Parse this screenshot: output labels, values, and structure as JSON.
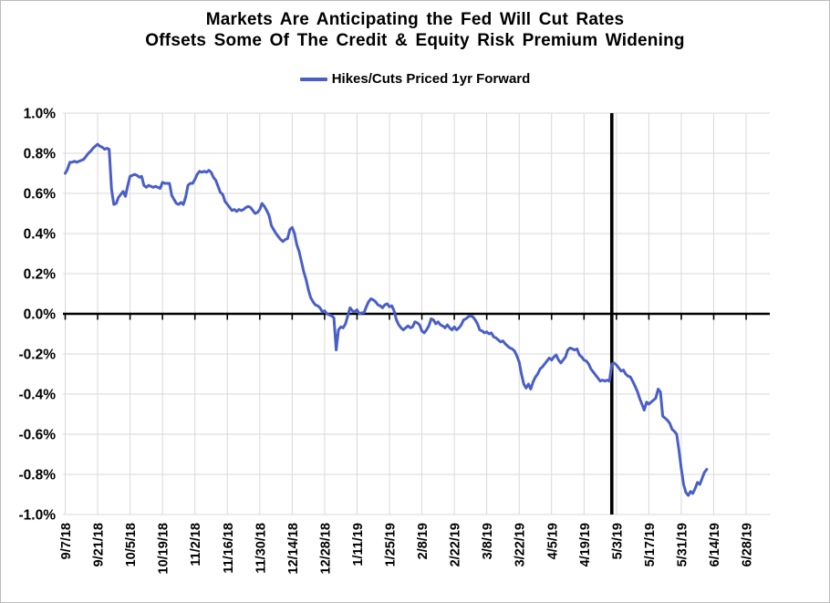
{
  "title": {
    "line1": "Markets Are Anticipating the Fed Will Cut Rates",
    "line2": "Offsets Some Of The Credit & Equity Risk Premium Widening"
  },
  "legend": {
    "label": "Hikes/Cuts Priced 1yr Forward"
  },
  "colors": {
    "series_blue": "#4a5fc6",
    "gridline_gray": "#d9d9d9",
    "axis_black": "#000000",
    "background": "#ffffff"
  },
  "chart_data": {
    "type": "line",
    "title": "Markets Are Anticipating the Fed Will Cut Rates Offsets Some Of The Credit & Equity Risk Premium Widening",
    "xlabel": "",
    "ylabel": "",
    "y_unit": "%",
    "ylim": [
      -1.0,
      1.0
    ],
    "y_tick_labels": [
      "1.0%",
      "0.8%",
      "0.6%",
      "0.4%",
      "0.2%",
      "0.0%",
      "-0.2%",
      "-0.4%",
      "-0.6%",
      "-0.8%",
      "-1.0%"
    ],
    "x_tick_labels": [
      "9/7/18",
      "9/21/18",
      "10/5/18",
      "10/19/18",
      "11/2/18",
      "11/16/18",
      "11/30/18",
      "12/14/18",
      "12/28/18",
      "1/11/19",
      "1/25/19",
      "2/8/19",
      "2/22/19",
      "3/8/19",
      "3/22/19",
      "4/5/19",
      "4/19/19",
      "5/3/19",
      "5/17/19",
      "5/31/19",
      "6/14/19",
      "6/28/19"
    ],
    "x_axis": {
      "start_date": "9/7/18",
      "end_date": "6/28/19",
      "tick_interval_days": 14,
      "total_days": 294
    },
    "grid": true,
    "legend_position": "top",
    "zero_line": true,
    "event_line": {
      "x_day": 236,
      "approx_date": "5/1/19",
      "color": "#000000"
    },
    "series": [
      {
        "name": "Hikes/Cuts Priced 1yr Forward",
        "color": "#4a5fc6",
        "points_format": "[days_since_9/7/18, percent_value]",
        "points": [
          [
            0,
            0.7
          ],
          [
            1,
            0.72
          ],
          [
            2,
            0.755
          ],
          [
            3,
            0.755
          ],
          [
            4,
            0.76
          ],
          [
            5,
            0.755
          ],
          [
            6,
            0.76
          ],
          [
            7,
            0.765
          ],
          [
            8,
            0.77
          ],
          [
            9,
            0.785
          ],
          [
            10,
            0.8
          ],
          [
            11,
            0.81
          ],
          [
            12,
            0.825
          ],
          [
            13,
            0.835
          ],
          [
            14,
            0.845
          ],
          [
            15,
            0.835
          ],
          [
            16,
            0.83
          ],
          [
            17,
            0.82
          ],
          [
            18,
            0.825
          ],
          [
            19,
            0.82
          ],
          [
            20,
            0.62
          ],
          [
            21,
            0.545
          ],
          [
            22,
            0.55
          ],
          [
            23,
            0.58
          ],
          [
            24,
            0.595
          ],
          [
            25,
            0.61
          ],
          [
            26,
            0.585
          ],
          [
            27,
            0.64
          ],
          [
            28,
            0.685
          ],
          [
            29,
            0.69
          ],
          [
            30,
            0.695
          ],
          [
            31,
            0.69
          ],
          [
            32,
            0.68
          ],
          [
            33,
            0.685
          ],
          [
            34,
            0.64
          ],
          [
            35,
            0.63
          ],
          [
            36,
            0.64
          ],
          [
            37,
            0.635
          ],
          [
            38,
            0.63
          ],
          [
            39,
            0.635
          ],
          [
            40,
            0.63
          ],
          [
            41,
            0.625
          ],
          [
            42,
            0.655
          ],
          [
            43,
            0.65
          ],
          [
            44,
            0.65
          ],
          [
            45,
            0.65
          ],
          [
            46,
            0.59
          ],
          [
            47,
            0.57
          ],
          [
            48,
            0.55
          ],
          [
            49,
            0.545
          ],
          [
            50,
            0.555
          ],
          [
            51,
            0.545
          ],
          [
            52,
            0.58
          ],
          [
            53,
            0.64
          ],
          [
            54,
            0.65
          ],
          [
            55,
            0.65
          ],
          [
            56,
            0.67
          ],
          [
            57,
            0.695
          ],
          [
            58,
            0.71
          ],
          [
            59,
            0.705
          ],
          [
            60,
            0.71
          ],
          [
            61,
            0.705
          ],
          [
            62,
            0.715
          ],
          [
            63,
            0.705
          ],
          [
            64,
            0.68
          ],
          [
            65,
            0.665
          ],
          [
            66,
            0.635
          ],
          [
            67,
            0.605
          ],
          [
            68,
            0.595
          ],
          [
            69,
            0.56
          ],
          [
            70,
            0.545
          ],
          [
            71,
            0.53
          ],
          [
            72,
            0.515
          ],
          [
            73,
            0.52
          ],
          [
            74,
            0.51
          ],
          [
            75,
            0.52
          ],
          [
            76,
            0.515
          ],
          [
            77,
            0.52
          ],
          [
            78,
            0.53
          ],
          [
            79,
            0.535
          ],
          [
            80,
            0.53
          ],
          [
            81,
            0.515
          ],
          [
            82,
            0.5
          ],
          [
            83,
            0.505
          ],
          [
            84,
            0.52
          ],
          [
            85,
            0.55
          ],
          [
            86,
            0.535
          ],
          [
            87,
            0.515
          ],
          [
            88,
            0.49
          ],
          [
            89,
            0.44
          ],
          [
            90,
            0.42
          ],
          [
            91,
            0.4
          ],
          [
            92,
            0.385
          ],
          [
            93,
            0.37
          ],
          [
            94,
            0.36
          ],
          [
            95,
            0.37
          ],
          [
            96,
            0.375
          ],
          [
            97,
            0.42
          ],
          [
            98,
            0.43
          ],
          [
            99,
            0.4
          ],
          [
            100,
            0.345
          ],
          [
            101,
            0.31
          ],
          [
            102,
            0.26
          ],
          [
            103,
            0.21
          ],
          [
            104,
            0.17
          ],
          [
            105,
            0.12
          ],
          [
            106,
            0.08
          ],
          [
            107,
            0.06
          ],
          [
            108,
            0.045
          ],
          [
            109,
            0.04
          ],
          [
            110,
            0.03
          ],
          [
            111,
            0.01
          ],
          [
            112,
            0.015
          ],
          [
            113,
            0.0
          ],
          [
            114,
            -0.005
          ],
          [
            115,
            -0.01
          ],
          [
            116,
            -0.02
          ],
          [
            117,
            -0.18
          ],
          [
            118,
            -0.08
          ],
          [
            119,
            -0.065
          ],
          [
            120,
            -0.07
          ],
          [
            121,
            -0.05
          ],
          [
            122,
            -0.01
          ],
          [
            123,
            0.03
          ],
          [
            124,
            0.015
          ],
          [
            125,
            0.01
          ],
          [
            126,
            0.02
          ],
          [
            127,
            0.0
          ],
          [
            128,
            0.005
          ],
          [
            129,
            0.005
          ],
          [
            130,
            0.035
          ],
          [
            131,
            0.06
          ],
          [
            132,
            0.075
          ],
          [
            133,
            0.07
          ],
          [
            134,
            0.06
          ],
          [
            135,
            0.045
          ],
          [
            136,
            0.04
          ],
          [
            137,
            0.03
          ],
          [
            138,
            0.045
          ],
          [
            139,
            0.05
          ],
          [
            140,
            0.035
          ],
          [
            141,
            0.04
          ],
          [
            142,
            0.015
          ],
          [
            143,
            -0.03
          ],
          [
            144,
            -0.055
          ],
          [
            145,
            -0.07
          ],
          [
            146,
            -0.08
          ],
          [
            147,
            -0.07
          ],
          [
            148,
            -0.06
          ],
          [
            149,
            -0.07
          ],
          [
            150,
            -0.065
          ],
          [
            151,
            -0.04
          ],
          [
            152,
            -0.045
          ],
          [
            153,
            -0.055
          ],
          [
            154,
            -0.085
          ],
          [
            155,
            -0.095
          ],
          [
            156,
            -0.08
          ],
          [
            157,
            -0.06
          ],
          [
            158,
            -0.025
          ],
          [
            159,
            -0.03
          ],
          [
            160,
            -0.05
          ],
          [
            161,
            -0.04
          ],
          [
            162,
            -0.055
          ],
          [
            163,
            -0.06
          ],
          [
            164,
            -0.07
          ],
          [
            165,
            -0.055
          ],
          [
            166,
            -0.07
          ],
          [
            167,
            -0.08
          ],
          [
            168,
            -0.065
          ],
          [
            169,
            -0.08
          ],
          [
            170,
            -0.07
          ],
          [
            171,
            -0.055
          ],
          [
            172,
            -0.03
          ],
          [
            173,
            -0.025
          ],
          [
            174,
            -0.015
          ],
          [
            175,
            -0.01
          ],
          [
            176,
            -0.015
          ],
          [
            177,
            -0.03
          ],
          [
            178,
            -0.05
          ],
          [
            179,
            -0.08
          ],
          [
            180,
            -0.085
          ],
          [
            181,
            -0.095
          ],
          [
            182,
            -0.09
          ],
          [
            183,
            -0.1
          ],
          [
            184,
            -0.095
          ],
          [
            185,
            -0.115
          ],
          [
            186,
            -0.12
          ],
          [
            187,
            -0.13
          ],
          [
            188,
            -0.14
          ],
          [
            189,
            -0.135
          ],
          [
            190,
            -0.15
          ],
          [
            191,
            -0.16
          ],
          [
            192,
            -0.17
          ],
          [
            193,
            -0.175
          ],
          [
            194,
            -0.185
          ],
          [
            195,
            -0.21
          ],
          [
            196,
            -0.24
          ],
          [
            197,
            -0.3
          ],
          [
            198,
            -0.35
          ],
          [
            199,
            -0.37
          ],
          [
            200,
            -0.35
          ],
          [
            201,
            -0.375
          ],
          [
            202,
            -0.34
          ],
          [
            203,
            -0.315
          ],
          [
            204,
            -0.3
          ],
          [
            205,
            -0.275
          ],
          [
            206,
            -0.265
          ],
          [
            207,
            -0.25
          ],
          [
            208,
            -0.235
          ],
          [
            209,
            -0.22
          ],
          [
            210,
            -0.23
          ],
          [
            211,
            -0.215
          ],
          [
            212,
            -0.205
          ],
          [
            213,
            -0.23
          ],
          [
            214,
            -0.245
          ],
          [
            215,
            -0.23
          ],
          [
            216,
            -0.215
          ],
          [
            217,
            -0.18
          ],
          [
            218,
            -0.17
          ],
          [
            219,
            -0.175
          ],
          [
            220,
            -0.18
          ],
          [
            221,
            -0.175
          ],
          [
            222,
            -0.205
          ],
          [
            223,
            -0.215
          ],
          [
            224,
            -0.23
          ],
          [
            225,
            -0.235
          ],
          [
            226,
            -0.25
          ],
          [
            227,
            -0.275
          ],
          [
            228,
            -0.29
          ],
          [
            229,
            -0.305
          ],
          [
            230,
            -0.32
          ],
          [
            231,
            -0.335
          ],
          [
            232,
            -0.33
          ],
          [
            233,
            -0.335
          ],
          [
            234,
            -0.33
          ],
          [
            235,
            -0.335
          ],
          [
            236,
            -0.25
          ],
          [
            237,
            -0.245
          ],
          [
            238,
            -0.255
          ],
          [
            239,
            -0.27
          ],
          [
            240,
            -0.285
          ],
          [
            241,
            -0.28
          ],
          [
            242,
            -0.3
          ],
          [
            243,
            -0.31
          ],
          [
            244,
            -0.315
          ],
          [
            245,
            -0.335
          ],
          [
            246,
            -0.36
          ],
          [
            247,
            -0.385
          ],
          [
            248,
            -0.42
          ],
          [
            249,
            -0.45
          ],
          [
            250,
            -0.48
          ],
          [
            251,
            -0.44
          ],
          [
            252,
            -0.45
          ],
          [
            253,
            -0.44
          ],
          [
            254,
            -0.43
          ],
          [
            255,
            -0.42
          ],
          [
            256,
            -0.375
          ],
          [
            257,
            -0.39
          ],
          [
            258,
            -0.51
          ],
          [
            259,
            -0.52
          ],
          [
            260,
            -0.53
          ],
          [
            261,
            -0.545
          ],
          [
            262,
            -0.575
          ],
          [
            263,
            -0.585
          ],
          [
            264,
            -0.6
          ],
          [
            265,
            -0.68
          ],
          [
            266,
            -0.77
          ],
          [
            267,
            -0.85
          ],
          [
            268,
            -0.89
          ],
          [
            269,
            -0.905
          ],
          [
            270,
            -0.885
          ],
          [
            271,
            -0.895
          ],
          [
            272,
            -0.87
          ],
          [
            273,
            -0.84
          ],
          [
            274,
            -0.85
          ],
          [
            275,
            -0.82
          ],
          [
            276,
            -0.79
          ],
          [
            277,
            -0.775
          ]
        ]
      }
    ]
  }
}
